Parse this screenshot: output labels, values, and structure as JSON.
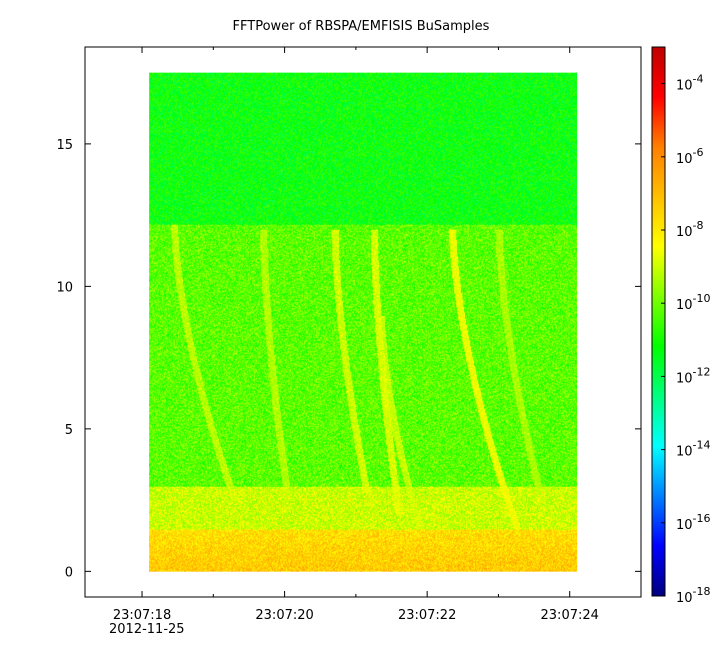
{
  "chart_data": {
    "type": "heatmap",
    "title": "FFTPower of RBSPA/EMFISIS  BuSamples",
    "xlabel": "",
    "ylabel": "",
    "x_range_seconds": [
      "23:07:17.20",
      "23:07:25.00"
    ],
    "data_x_range": [
      "23:07:18.10",
      "23:07:24.10"
    ],
    "x_ticks": [
      {
        "label": "23:07:18",
        "sublabel": "2012-11-25",
        "t": 18.0
      },
      {
        "label": "23:07:20",
        "t": 20.0
      },
      {
        "label": "23:07:22",
        "t": 22.0
      },
      {
        "label": "23:07:24",
        "t": 24.0
      }
    ],
    "x_minor_ticks": [
      19.0,
      21.0,
      23.0,
      25.0
    ],
    "ylim": [
      -0.9,
      18.4
    ],
    "data_y_range": [
      0,
      17.5
    ],
    "y_ticks": [
      0,
      5,
      10,
      15
    ],
    "colorbar": {
      "scale": "log",
      "range": [
        1e-18,
        0.001
      ],
      "ticks": [
        {
          "base": "10",
          "exp": "-4",
          "value": -4
        },
        {
          "base": "10",
          "exp": "-6",
          "value": -6
        },
        {
          "base": "10",
          "exp": "-8",
          "value": -8
        },
        {
          "base": "10",
          "exp": "-10",
          "value": -10
        },
        {
          "base": "10",
          "exp": "-12",
          "value": -12
        },
        {
          "base": "10",
          "exp": "-14",
          "value": -14
        },
        {
          "base": "10",
          "exp": "-16",
          "value": -16
        },
        {
          "base": "10",
          "exp": "-18",
          "value": -18
        }
      ],
      "colors": [
        "#00007f",
        "#0000ff",
        "#007fff",
        "#00ffff",
        "#00ff7f",
        "#00ff00",
        "#7fff00",
        "#ffff00",
        "#ffbf00",
        "#ff7f00",
        "#ff0000",
        "#bf0000"
      ]
    },
    "background_levels": [
      {
        "y_from": 12.2,
        "y_to": 17.5,
        "log_power": -11.2
      },
      {
        "y_from": 3.0,
        "y_to": 12.2,
        "log_power": -10.2
      },
      {
        "y_from": 1.5,
        "y_to": 3.0,
        "log_power": -9.0
      },
      {
        "y_from": 0.0,
        "y_to": 1.5,
        "log_power": -7.8
      }
    ],
    "chorus_tracks": [
      {
        "t_start": 18.45,
        "t_end": 19.3,
        "y_start": 12.2,
        "y_end": 2.5,
        "log_power": -9.2
      },
      {
        "t_start": 19.7,
        "t_end": 20.05,
        "y_start": 12.0,
        "y_end": 2.5,
        "log_power": -9.3
      },
      {
        "t_start": 20.7,
        "t_end": 21.15,
        "y_start": 12.0,
        "y_end": 2.8,
        "log_power": -9.0
      },
      {
        "t_start": 21.25,
        "t_end": 21.6,
        "y_start": 12.0,
        "y_end": 2.0,
        "log_power": -8.9
      },
      {
        "t_start": 21.35,
        "t_end": 21.9,
        "y_start": 9.0,
        "y_end": 1.5,
        "log_power": -9.1
      },
      {
        "t_start": 22.35,
        "t_end": 23.4,
        "y_start": 12.0,
        "y_end": 0.5,
        "log_power": -8.6
      },
      {
        "t_start": 23.0,
        "t_end": 23.6,
        "y_start": 12.0,
        "y_end": 2.5,
        "log_power": -9.4
      }
    ]
  }
}
